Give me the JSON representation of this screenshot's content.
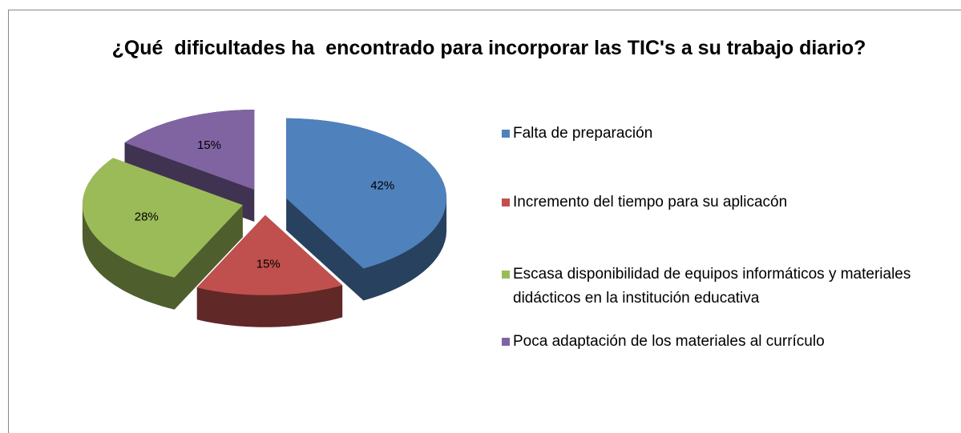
{
  "chart_data": {
    "type": "pie",
    "title": "¿Qué  dificultades ha  encontrado para incorporar las TIC's a su trabajo diario?",
    "categories": [
      "Falta de preparación",
      "Incremento del tiempo para su aplicacón",
      "Escasa disponibilidad de equipos informáticos y materiales didácticos en la institución educativa",
      "Poca adaptación de los materiales al currículo"
    ],
    "values": [
      42,
      15,
      28,
      15
    ],
    "value_labels": [
      "42%",
      "15%",
      "28%",
      "15%"
    ],
    "colors": [
      "#4f81bd",
      "#c0504d",
      "#9bbb59",
      "#8064a2"
    ],
    "legend": "right"
  }
}
